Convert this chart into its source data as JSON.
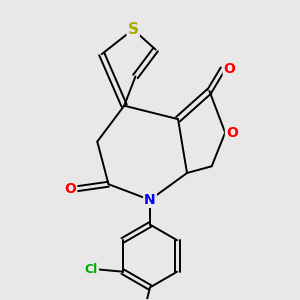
{
  "background_color": "#e8e8e8",
  "bond_color": "#000000",
  "figsize": [
    3.0,
    3.0
  ],
  "dpi": 100,
  "atom_colors": {
    "S": "#aaaa00",
    "O": "#ff0000",
    "N": "#0000ff",
    "Cl": "#00aa00",
    "C": "#000000"
  },
  "lw": 1.4
}
